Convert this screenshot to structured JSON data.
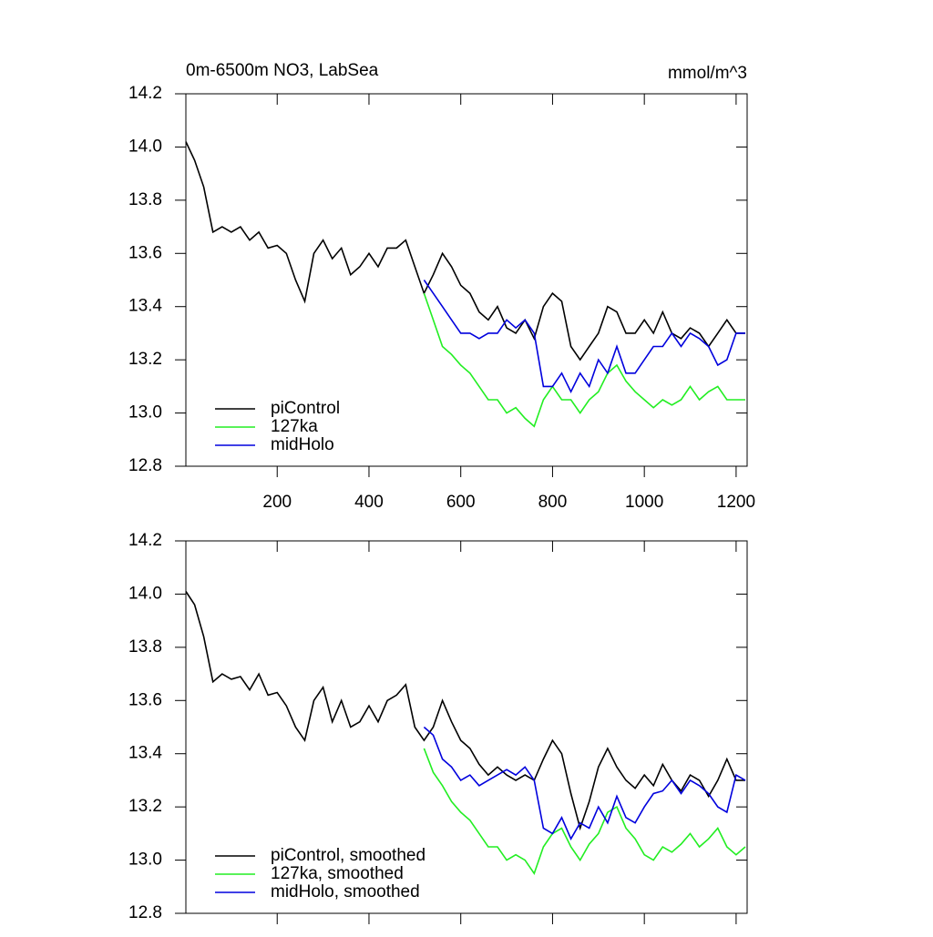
{
  "chart_data": [
    {
      "type": "line",
      "title": "0m-6500m NO3, LabSea",
      "units": "mmol/m^3",
      "xlim": [
        1,
        1224
      ],
      "ylim": [
        12.8,
        14.2
      ],
      "xticks": [
        200,
        400,
        600,
        800,
        1000,
        1200
      ],
      "x_tick_labels": true,
      "yticks": [
        12.8,
        {
          "value": 13,
          "label": "13.0"
        },
        13.2,
        13.4,
        13.6,
        13.8,
        {
          "value": 14,
          "label": "14.0"
        },
        14.2
      ],
      "legend": "lower left",
      "series": [
        {
          "name": "piControl",
          "color": "#000000",
          "x": [
            1,
            20,
            40,
            60,
            80,
            100,
            120,
            140,
            160,
            180,
            200,
            220,
            240,
            260,
            280,
            300,
            320,
            340,
            360,
            380,
            400,
            420,
            440,
            460,
            480,
            500,
            520,
            540,
            560,
            580,
            600,
            620,
            640,
            660,
            680,
            700,
            720,
            740,
            760,
            780,
            800,
            820,
            840,
            860,
            880,
            900,
            920,
            940,
            960,
            980,
            1000,
            1020,
            1040,
            1060,
            1080,
            1100,
            1120,
            1140,
            1160,
            1180,
            1200,
            1220
          ],
          "values": [
            14.02,
            13.95,
            13.85,
            13.68,
            13.7,
            13.68,
            13.7,
            13.65,
            13.68,
            13.62,
            13.63,
            13.6,
            13.5,
            13.42,
            13.6,
            13.65,
            13.58,
            13.62,
            13.52,
            13.55,
            13.6,
            13.55,
            13.62,
            13.62,
            13.65,
            13.55,
            13.45,
            13.52,
            13.6,
            13.55,
            13.48,
            13.45,
            13.38,
            13.35,
            13.4,
            13.32,
            13.3,
            13.35,
            13.28,
            13.4,
            13.45,
            13.42,
            13.25,
            13.2,
            13.25,
            13.3,
            13.4,
            13.38,
            13.3,
            13.3,
            13.35,
            13.3,
            13.38,
            13.3,
            13.28,
            13.32,
            13.3,
            13.25,
            13.3,
            13.35,
            13.3,
            13.3
          ]
        },
        {
          "name": "127ka",
          "color": "#22ee22",
          "x": [
            520,
            540,
            560,
            580,
            600,
            620,
            640,
            660,
            680,
            700,
            720,
            740,
            760,
            780,
            800,
            820,
            840,
            860,
            880,
            900,
            920,
            940,
            960,
            980,
            1000,
            1020,
            1040,
            1060,
            1080,
            1100,
            1120,
            1140,
            1160,
            1180,
            1200,
            1220
          ],
          "values": [
            13.45,
            13.35,
            13.25,
            13.22,
            13.18,
            13.15,
            13.1,
            13.05,
            13.05,
            13.0,
            13.02,
            12.98,
            12.95,
            13.05,
            13.1,
            13.05,
            13.05,
            13.0,
            13.05,
            13.08,
            13.15,
            13.18,
            13.12,
            13.08,
            13.05,
            13.02,
            13.05,
            13.03,
            13.05,
            13.1,
            13.05,
            13.08,
            13.1,
            13.05,
            13.05,
            13.05
          ]
        },
        {
          "name": "midHolo",
          "color": "#0000dd",
          "x": [
            520,
            540,
            560,
            580,
            600,
            620,
            640,
            660,
            680,
            700,
            720,
            740,
            760,
            780,
            800,
            820,
            840,
            860,
            880,
            900,
            920,
            940,
            960,
            980,
            1000,
            1020,
            1040,
            1060,
            1080,
            1100,
            1120,
            1140,
            1160,
            1180,
            1200,
            1220
          ],
          "values": [
            13.5,
            13.45,
            13.4,
            13.35,
            13.3,
            13.3,
            13.28,
            13.3,
            13.3,
            13.35,
            13.32,
            13.35,
            13.3,
            13.1,
            13.1,
            13.15,
            13.08,
            13.15,
            13.1,
            13.2,
            13.15,
            13.25,
            13.15,
            13.15,
            13.2,
            13.25,
            13.25,
            13.3,
            13.25,
            13.3,
            13.28,
            13.25,
            13.18,
            13.2,
            13.3,
            13.3
          ]
        }
      ]
    },
    {
      "type": "line",
      "xlim": [
        1,
        1224
      ],
      "ylim": [
        12.8,
        14.2
      ],
      "xticks": [
        200,
        400,
        600,
        800,
        1000,
        1200
      ],
      "x_tick_labels": false,
      "yticks": [
        12.8,
        {
          "value": 13,
          "label": "13.0"
        },
        13.2,
        13.4,
        13.6,
        13.8,
        {
          "value": 14,
          "label": "14.0"
        },
        14.2
      ],
      "legend": "lower left",
      "series": [
        {
          "name": "piControl, smoothed",
          "color": "#000000",
          "x": [
            1,
            20,
            40,
            60,
            80,
            100,
            120,
            140,
            160,
            180,
            200,
            220,
            240,
            260,
            280,
            300,
            320,
            340,
            360,
            380,
            400,
            420,
            440,
            460,
            480,
            500,
            520,
            540,
            560,
            580,
            600,
            620,
            640,
            660,
            680,
            700,
            720,
            740,
            760,
            780,
            800,
            820,
            840,
            860,
            880,
            900,
            920,
            940,
            960,
            980,
            1000,
            1020,
            1040,
            1060,
            1080,
            1100,
            1120,
            1140,
            1160,
            1180,
            1200,
            1220
          ],
          "values": [
            14.01,
            13.96,
            13.84,
            13.67,
            13.7,
            13.68,
            13.69,
            13.64,
            13.7,
            13.62,
            13.63,
            13.58,
            13.5,
            13.45,
            13.6,
            13.65,
            13.52,
            13.6,
            13.5,
            13.52,
            13.58,
            13.52,
            13.6,
            13.62,
            13.66,
            13.5,
            13.45,
            13.5,
            13.6,
            13.52,
            13.45,
            13.42,
            13.36,
            13.32,
            13.35,
            13.32,
            13.3,
            13.32,
            13.3,
            13.38,
            13.45,
            13.4,
            13.25,
            13.12,
            13.22,
            13.35,
            13.42,
            13.35,
            13.3,
            13.27,
            13.32,
            13.28,
            13.36,
            13.3,
            13.26,
            13.32,
            13.3,
            13.24,
            13.3,
            13.38,
            13.3,
            13.3
          ]
        },
        {
          "name": "127ka, smoothed",
          "color": "#22ee22",
          "x": [
            520,
            540,
            560,
            580,
            600,
            620,
            640,
            660,
            680,
            700,
            720,
            740,
            760,
            780,
            800,
            820,
            840,
            860,
            880,
            900,
            920,
            940,
            960,
            980,
            1000,
            1020,
            1040,
            1060,
            1080,
            1100,
            1120,
            1140,
            1160,
            1180,
            1200,
            1220
          ],
          "values": [
            13.42,
            13.33,
            13.28,
            13.22,
            13.18,
            13.15,
            13.1,
            13.05,
            13.05,
            13.0,
            13.02,
            13.0,
            12.95,
            13.05,
            13.1,
            13.12,
            13.05,
            13.0,
            13.06,
            13.1,
            13.18,
            13.2,
            13.12,
            13.08,
            13.02,
            13.0,
            13.05,
            13.03,
            13.06,
            13.1,
            13.05,
            13.08,
            13.12,
            13.05,
            13.02,
            13.05
          ]
        },
        {
          "name": "midHolo, smoothed",
          "color": "#0000dd",
          "x": [
            520,
            540,
            560,
            580,
            600,
            620,
            640,
            660,
            680,
            700,
            720,
            740,
            760,
            780,
            800,
            820,
            840,
            860,
            880,
            900,
            920,
            940,
            960,
            980,
            1000,
            1020,
            1040,
            1060,
            1080,
            1100,
            1120,
            1140,
            1160,
            1180,
            1200,
            1220
          ],
          "values": [
            13.5,
            13.47,
            13.38,
            13.35,
            13.3,
            13.32,
            13.28,
            13.3,
            13.32,
            13.34,
            13.32,
            13.35,
            13.3,
            13.12,
            13.1,
            13.16,
            13.08,
            13.14,
            13.12,
            13.2,
            13.14,
            13.24,
            13.16,
            13.14,
            13.2,
            13.25,
            13.26,
            13.3,
            13.25,
            13.3,
            13.28,
            13.25,
            13.2,
            13.18,
            13.32,
            13.3
          ]
        }
      ]
    }
  ]
}
